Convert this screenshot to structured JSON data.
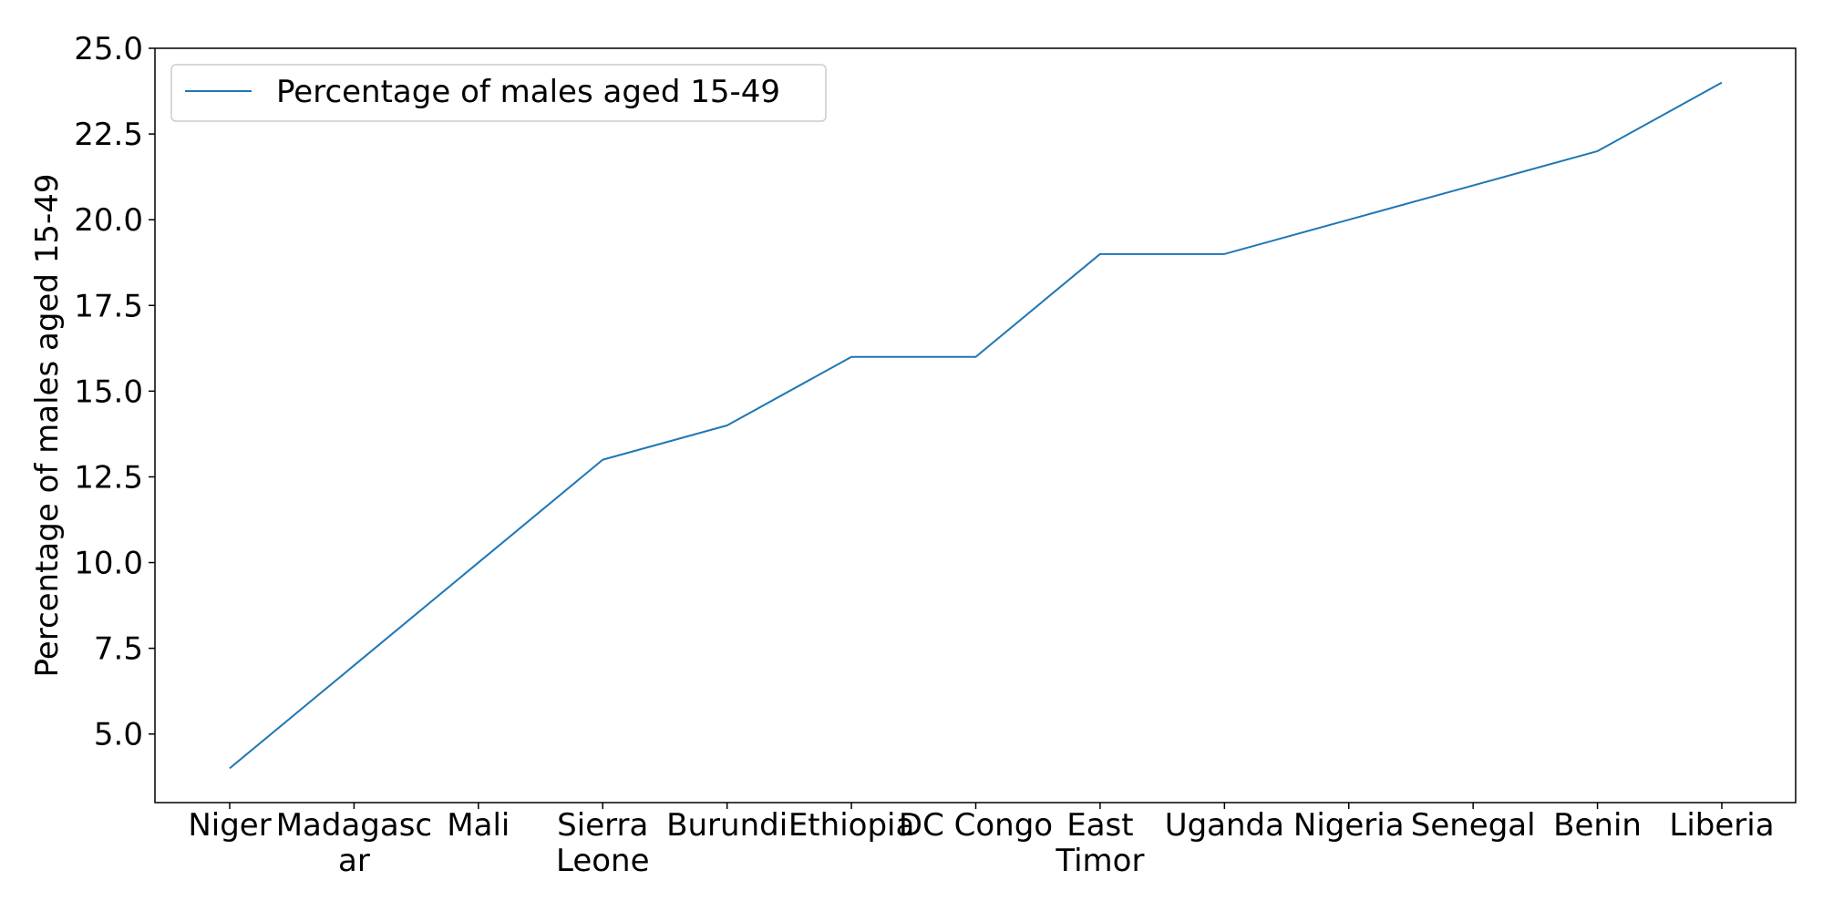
{
  "chart_data": {
    "type": "line",
    "title": "",
    "xlabel": "",
    "ylabel": "Percentage of males aged 15-49",
    "categories": [
      [
        "Niger"
      ],
      [
        "Madagasc",
        "ar"
      ],
      [
        "Mali"
      ],
      [
        "Sierra",
        "Leone"
      ],
      [
        "Burundi"
      ],
      [
        "Ethiopia"
      ],
      [
        "DC Congo"
      ],
      [
        "East",
        "Timor"
      ],
      [
        "Uganda"
      ],
      [
        "Nigeria"
      ],
      [
        "Senegal"
      ],
      [
        "Benin"
      ],
      [
        "Liberia"
      ]
    ],
    "series": [
      {
        "name": "Percentage of males aged 15-49",
        "color": "#1f77b4",
        "values": [
          4,
          7,
          10,
          13,
          14,
          16,
          16,
          19,
          19,
          20,
          21,
          22,
          24
        ]
      }
    ],
    "ylim": [
      3.0,
      25.0
    ],
    "yticks": [
      "5.0",
      "7.5",
      "10.0",
      "12.5",
      "15.0",
      "17.5",
      "20.0",
      "22.5",
      "25.0"
    ],
    "grid": false,
    "legend": "upper left"
  }
}
